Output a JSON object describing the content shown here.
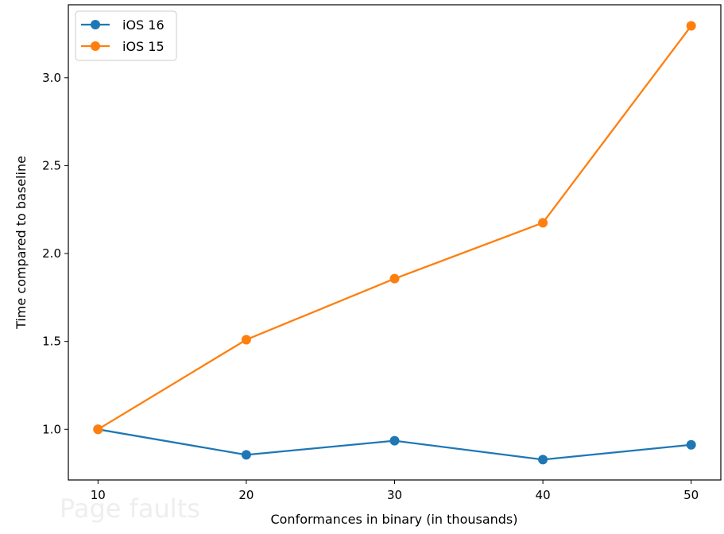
{
  "background_text": {
    "heading": "Page faults"
  },
  "chart_data": {
    "type": "line",
    "x": [
      10,
      20,
      30,
      40,
      50
    ],
    "series": [
      {
        "name": "iOS 16",
        "color": "#1f77b4",
        "values": [
          1.0,
          0.855,
          0.935,
          0.828,
          0.912
        ]
      },
      {
        "name": "iOS 15",
        "color": "#ff7f0e",
        "values": [
          1.0,
          1.51,
          1.857,
          2.175,
          3.295
        ]
      }
    ],
    "xlabel": "Conformances in binary (in thousands)",
    "ylabel": "Time compared to baseline",
    "xticks": [
      "10",
      "20",
      "30",
      "40",
      "50"
    ],
    "yticks": [
      "1.0",
      "1.5",
      "2.0",
      "2.5",
      "3.0"
    ],
    "xlim": [
      8,
      52
    ],
    "ylim": [
      0.712,
      3.415
    ],
    "legend": "upper-left",
    "grid": false,
    "markers": true
  }
}
